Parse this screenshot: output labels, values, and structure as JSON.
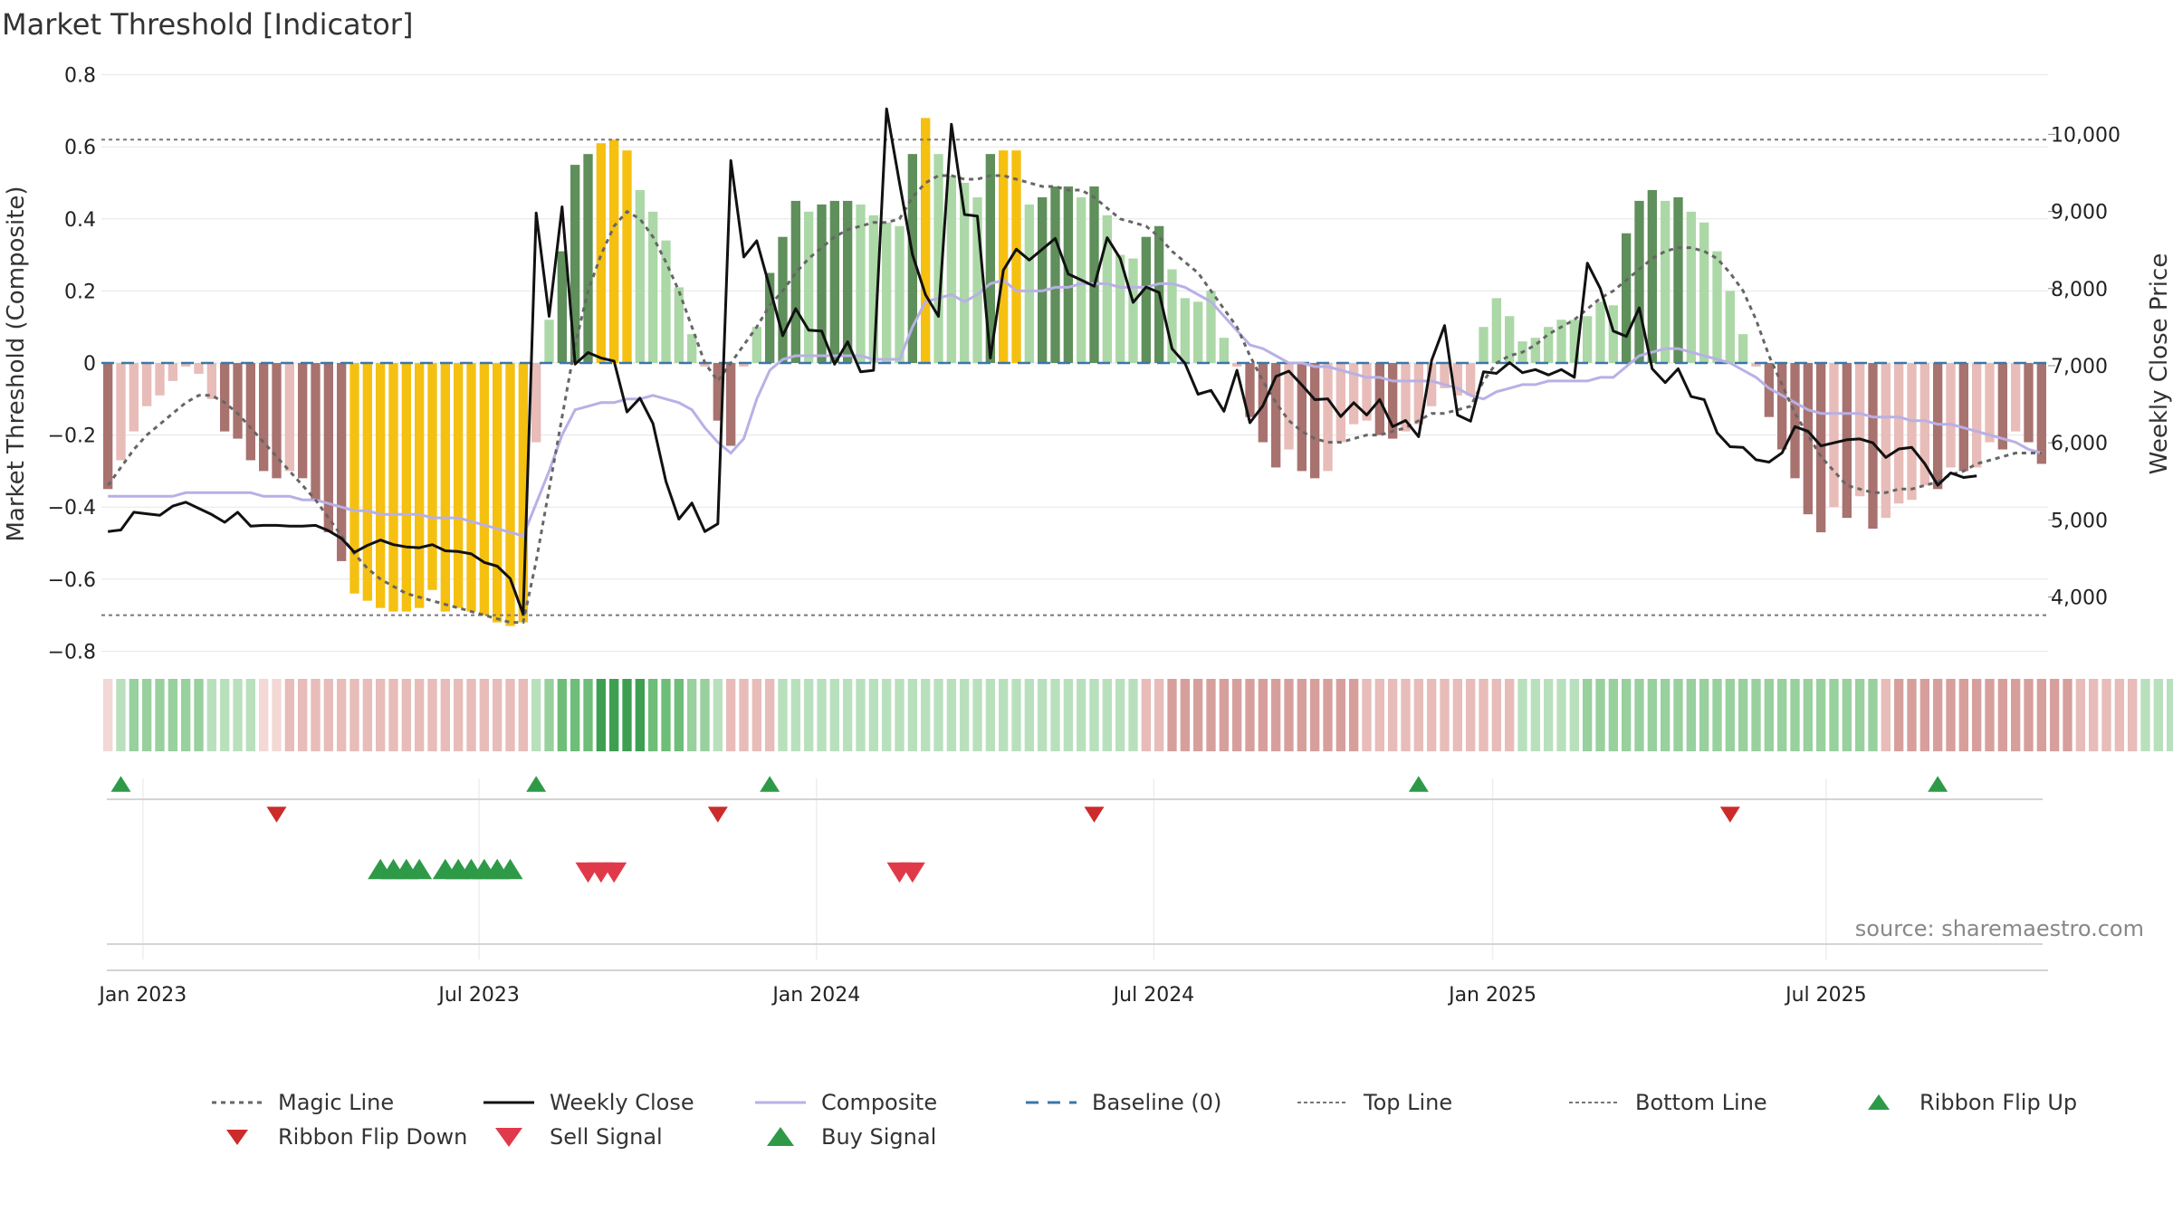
{
  "chart_data": {
    "type": "bar",
    "title": "Market Threshold [Indicator]",
    "ylabel_left": "Market Threshold (Composite)",
    "ylabel_right": "Weekly Close Price",
    "source": "source: sharemaestro.com",
    "ylim_left": [
      -0.8,
      0.8
    ],
    "ylim_right": [
      3300,
      10800
    ],
    "yticks_left": [
      {
        "v": 0.8,
        "label": "0.8"
      },
      {
        "v": 0.6,
        "label": "0.6"
      },
      {
        "v": 0.4,
        "label": "0.4"
      },
      {
        "v": 0.2,
        "label": "0.2"
      },
      {
        "v": 0,
        "label": "0"
      },
      {
        "v": -0.2,
        "label": "−0.2"
      },
      {
        "v": -0.4,
        "label": "−0.4"
      },
      {
        "v": -0.6,
        "label": "−0.6"
      },
      {
        "v": -0.8,
        "label": "−0.8"
      }
    ],
    "yticks_right": [
      {
        "v": 10000,
        "label": "10,000"
      },
      {
        "v": 9000,
        "label": "9,000"
      },
      {
        "v": 8000,
        "label": "8,000"
      },
      {
        "v": 7000,
        "label": "7,000"
      },
      {
        "v": 6000,
        "label": "6,000"
      },
      {
        "v": 5000,
        "label": "5,000"
      },
      {
        "v": 4000,
        "label": "4,000"
      }
    ],
    "xticks": [
      {
        "week": 2.7,
        "label": "Jan 2023"
      },
      {
        "week": 28.6,
        "label": "Jul 2023"
      },
      {
        "week": 54.6,
        "label": "Jan 2024"
      },
      {
        "week": 80.6,
        "label": "Jul 2024"
      },
      {
        "week": 106.7,
        "label": "Jan 2025"
      },
      {
        "week": 132.4,
        "label": "Jul 2025"
      }
    ],
    "top_line": 0.62,
    "bottom_line": -0.7,
    "baseline": 0,
    "composite_bars": [
      -0.35,
      -0.27,
      -0.19,
      -0.12,
      -0.09,
      -0.05,
      -0.01,
      -0.03,
      -0.1,
      -0.19,
      -0.21,
      -0.27,
      -0.3,
      -0.32,
      -0.3,
      -0.32,
      -0.38,
      -0.47,
      -0.55,
      -0.64,
      -0.66,
      -0.68,
      -0.69,
      -0.69,
      -0.68,
      -0.63,
      -0.69,
      -0.68,
      -0.69,
      -0.7,
      -0.72,
      -0.73,
      -0.72,
      -0.22,
      0.12,
      0.31,
      0.55,
      0.58,
      0.61,
      0.62,
      0.59,
      0.48,
      0.42,
      0.34,
      0.21,
      0.08,
      -0.01,
      -0.16,
      -0.23,
      -0.01,
      0.1,
      0.25,
      0.35,
      0.45,
      0.42,
      0.44,
      0.45,
      0.45,
      0.44,
      0.41,
      0.39,
      0.38,
      0.58,
      0.68,
      0.58,
      0.52,
      0.5,
      0.46,
      0.58,
      0.59,
      0.59,
      0.44,
      0.46,
      0.49,
      0.49,
      0.46,
      0.49,
      0.41,
      0.3,
      0.29,
      0.35,
      0.38,
      0.26,
      0.18,
      0.17,
      0.2,
      0.07,
      -0.01,
      -0.15,
      -0.22,
      -0.29,
      -0.24,
      -0.3,
      -0.32,
      -0.3,
      -0.22,
      -0.17,
      -0.16,
      -0.2,
      -0.21,
      -0.19,
      -0.17,
      -0.12,
      -0.07,
      -0.09,
      -0.09,
      0.1,
      0.18,
      0.13,
      0.06,
      0.07,
      0.1,
      0.12,
      0.12,
      0.13,
      0.17,
      0.16,
      0.36,
      0.45,
      0.48,
      0.45,
      0.46,
      0.42,
      0.39,
      0.31,
      0.2,
      0.08,
      -0.01,
      -0.15,
      -0.24,
      -0.32,
      -0.42,
      -0.47,
      -0.4,
      -0.43,
      -0.37,
      -0.46,
      -0.43,
      -0.39,
      -0.38,
      -0.34,
      -0.35,
      -0.29,
      -0.3,
      -0.29,
      -0.22,
      -0.24,
      -0.19,
      -0.22,
      -0.28
    ],
    "composite_line": [
      -0.37,
      -0.37,
      -0.37,
      -0.37,
      -0.37,
      -0.37,
      -0.36,
      -0.36,
      -0.36,
      -0.36,
      -0.36,
      -0.36,
      -0.37,
      -0.37,
      -0.37,
      -0.38,
      -0.38,
      -0.39,
      -0.4,
      -0.41,
      -0.41,
      -0.42,
      -0.42,
      -0.42,
      -0.42,
      -0.43,
      -0.43,
      -0.43,
      -0.44,
      -0.45,
      -0.46,
      -0.47,
      -0.48,
      -0.39,
      -0.3,
      -0.2,
      -0.13,
      -0.12,
      -0.11,
      -0.11,
      -0.1,
      -0.1,
      -0.09,
      -0.1,
      -0.11,
      -0.13,
      -0.18,
      -0.22,
      -0.25,
      -0.21,
      -0.1,
      -0.02,
      0.01,
      0.02,
      0.02,
      0.02,
      0.02,
      0.02,
      0.02,
      0.01,
      0.01,
      0.01,
      0.1,
      0.17,
      0.18,
      0.19,
      0.17,
      0.19,
      0.22,
      0.23,
      0.2,
      0.2,
      0.2,
      0.21,
      0.21,
      0.22,
      0.22,
      0.22,
      0.21,
      0.21,
      0.21,
      0.22,
      0.22,
      0.21,
      0.19,
      0.17,
      0.13,
      0.09,
      0.05,
      0.04,
      0.02,
      0.0,
      0.0,
      -0.01,
      -0.01,
      -0.02,
      -0.03,
      -0.04,
      -0.04,
      -0.05,
      -0.05,
      -0.05,
      -0.05,
      -0.06,
      -0.07,
      -0.09,
      -0.1,
      -0.08,
      -0.07,
      -0.06,
      -0.06,
      -0.05,
      -0.05,
      -0.05,
      -0.05,
      -0.04,
      -0.04,
      -0.01,
      0.02,
      0.03,
      0.04,
      0.04,
      0.03,
      0.02,
      0.01,
      0.0,
      -0.02,
      -0.04,
      -0.07,
      -0.09,
      -0.11,
      -0.13,
      -0.14,
      -0.14,
      -0.14,
      -0.14,
      -0.15,
      -0.15,
      -0.15,
      -0.16,
      -0.16,
      -0.17,
      -0.17,
      -0.18,
      -0.19,
      -0.2,
      -0.21,
      -0.22,
      -0.24,
      -0.25
    ],
    "magic_line": [
      -0.34,
      -0.29,
      -0.24,
      -0.2,
      -0.17,
      -0.14,
      -0.11,
      -0.09,
      -0.09,
      -0.11,
      -0.14,
      -0.18,
      -0.22,
      -0.26,
      -0.3,
      -0.34,
      -0.38,
      -0.43,
      -0.48,
      -0.53,
      -0.57,
      -0.6,
      -0.62,
      -0.64,
      -0.65,
      -0.66,
      -0.67,
      -0.68,
      -0.69,
      -0.7,
      -0.71,
      -0.72,
      -0.72,
      -0.55,
      -0.35,
      -0.15,
      0.05,
      0.2,
      0.3,
      0.38,
      0.42,
      0.4,
      0.35,
      0.28,
      0.2,
      0.1,
      0.0,
      -0.05,
      0.0,
      0.05,
      0.1,
      0.16,
      0.2,
      0.25,
      0.29,
      0.32,
      0.35,
      0.37,
      0.38,
      0.39,
      0.39,
      0.4,
      0.46,
      0.5,
      0.52,
      0.52,
      0.51,
      0.51,
      0.52,
      0.52,
      0.51,
      0.5,
      0.49,
      0.49,
      0.48,
      0.48,
      0.46,
      0.43,
      0.4,
      0.39,
      0.38,
      0.35,
      0.31,
      0.28,
      0.25,
      0.2,
      0.15,
      0.1,
      0.02,
      -0.05,
      -0.11,
      -0.16,
      -0.19,
      -0.21,
      -0.22,
      -0.22,
      -0.21,
      -0.2,
      -0.2,
      -0.19,
      -0.18,
      -0.16,
      -0.14,
      -0.14,
      -0.13,
      -0.12,
      -0.05,
      0.0,
      0.02,
      0.03,
      0.05,
      0.08,
      0.1,
      0.12,
      0.15,
      0.18,
      0.2,
      0.23,
      0.26,
      0.29,
      0.31,
      0.32,
      0.32,
      0.31,
      0.29,
      0.25,
      0.2,
      0.12,
      0.02,
      -0.06,
      -0.14,
      -0.2,
      -0.26,
      -0.3,
      -0.34,
      -0.35,
      -0.36,
      -0.36,
      -0.35,
      -0.35,
      -0.34,
      -0.33,
      -0.31,
      -0.3,
      -0.28,
      -0.27,
      -0.26,
      -0.25,
      -0.25,
      -0.25
    ],
    "weekly_close": [
      4850,
      4870,
      5100,
      5080,
      5060,
      5180,
      5230,
      5150,
      5070,
      4970,
      5100,
      4920,
      4930,
      4930,
      4920,
      4920,
      4930,
      4860,
      4760,
      4580,
      4670,
      4740,
      4680,
      4650,
      4640,
      4680,
      4600,
      4590,
      4560,
      4450,
      4400,
      4240,
      3780,
      8980,
      7640,
      9060,
      7020,
      7170,
      7100,
      7060,
      6400,
      6580,
      6250,
      5500,
      5010,
      5220,
      4850,
      4950,
      9660,
      8410,
      8620,
      8010,
      7390,
      7740,
      7460,
      7450,
      7020,
      7310,
      6920,
      6940,
      10330,
      9370,
      8440,
      7920,
      7640,
      10130,
      8960,
      8940,
      7100,
      8240,
      8510,
      8370,
      8510,
      8650,
      8190,
      8110,
      8030,
      8660,
      8390,
      7820,
      8020,
      7950,
      7220,
      7030,
      6630,
      6680,
      6410,
      6940,
      6260,
      6480,
      6860,
      6930,
      6750,
      6560,
      6570,
      6340,
      6520,
      6360,
      6560,
      6210,
      6290,
      6080,
      7070,
      7520,
      6360,
      6280,
      6920,
      6900,
      7040,
      6910,
      6950,
      6880,
      6950,
      6850,
      8330,
      8000,
      7450,
      7380,
      7750,
      6960,
      6780,
      6960,
      6600,
      6560,
      6130,
      5950,
      5940,
      5780,
      5750,
      5870,
      6210,
      6150,
      5960,
      6000,
      6040,
      6050,
      6000,
      5810,
      5920,
      5940,
      5730,
      5450,
      5610,
      5550,
      5570
    ],
    "ribbon": [
      -1,
      1,
      2,
      2,
      2,
      2,
      2,
      2,
      1,
      1,
      1,
      1,
      -1,
      -1,
      -2,
      -2,
      -2,
      -2,
      -2,
      -2,
      -2,
      -2,
      -2,
      -2,
      -2,
      -2,
      -2,
      -2,
      -2,
      -2,
      -2,
      -2,
      -2,
      1,
      2,
      3,
      3,
      3,
      4,
      4,
      4,
      4,
      3,
      3,
      3,
      2,
      2,
      1,
      -2,
      -2,
      -2,
      -2,
      1,
      1,
      1,
      1,
      1,
      1,
      1,
      1,
      1,
      1,
      1,
      1,
      1,
      1,
      1,
      1,
      1,
      1,
      1,
      1,
      1,
      1,
      1,
      1,
      1,
      1,
      1,
      1,
      -2,
      -2,
      -3,
      -3,
      -3,
      -3,
      -3,
      -3,
      -3,
      -3,
      -3,
      -3,
      -3,
      -3,
      -3,
      -3,
      -3,
      -2,
      -2,
      -2,
      -2,
      -2,
      -2,
      -2,
      -2,
      -2,
      -2,
      -2,
      -2,
      1,
      1,
      1,
      1,
      1,
      2,
      2,
      2,
      2,
      2,
      2,
      2,
      2,
      2,
      2,
      2,
      2,
      2,
      2,
      2,
      2,
      2,
      2,
      2,
      2,
      2,
      2,
      2,
      -2,
      -3,
      -3,
      -3,
      -3,
      -3,
      -3,
      -3,
      -3,
      -3,
      -3,
      -3,
      -3,
      -3,
      -3,
      -2,
      -2,
      -2,
      -2,
      -2,
      1,
      1,
      1,
      1,
      1,
      1
    ],
    "ribbon_flip_up_weeks": [
      1,
      33,
      51,
      101,
      141
    ],
    "ribbon_flip_down_weeks": [
      13,
      47,
      76,
      125
    ],
    "buy_signal_weeks": [
      21,
      22,
      23,
      24,
      26,
      27,
      28,
      29,
      30,
      31
    ],
    "sell_signal_weeks": [
      37,
      38,
      39,
      61,
      62
    ],
    "colors": {
      "bar_pos_strong": "#5f8f5b",
      "bar_pos_weak": "#acd8a7",
      "bar_neg_strong": "#a8726f",
      "bar_neg_weak": "#e8bcb8",
      "bar_extreme": "#f5c010",
      "weekly_close": "#111111",
      "composite": "#b8b0e6",
      "magic_line": "#666666",
      "baseline": "#3a77a8",
      "threshold": "#777777",
      "flip_up": "#2e9a48",
      "flip_down": "#cc2b2b",
      "buy": "#2e9a48",
      "sell": "#e03a4a"
    },
    "legend": [
      {
        "key": "magic",
        "label": "Magic Line"
      },
      {
        "key": "close",
        "label": "Weekly Close"
      },
      {
        "key": "composite",
        "label": "Composite"
      },
      {
        "key": "baseline",
        "label": "Baseline (0)"
      },
      {
        "key": "top",
        "label": "Top Line"
      },
      {
        "key": "bottom",
        "label": "Bottom Line"
      },
      {
        "key": "flipup",
        "label": "Ribbon Flip Up"
      },
      {
        "key": "flipdown",
        "label": "Ribbon Flip Down"
      },
      {
        "key": "sell",
        "label": "Sell Signal"
      },
      {
        "key": "buy",
        "label": "Buy Signal"
      }
    ]
  }
}
